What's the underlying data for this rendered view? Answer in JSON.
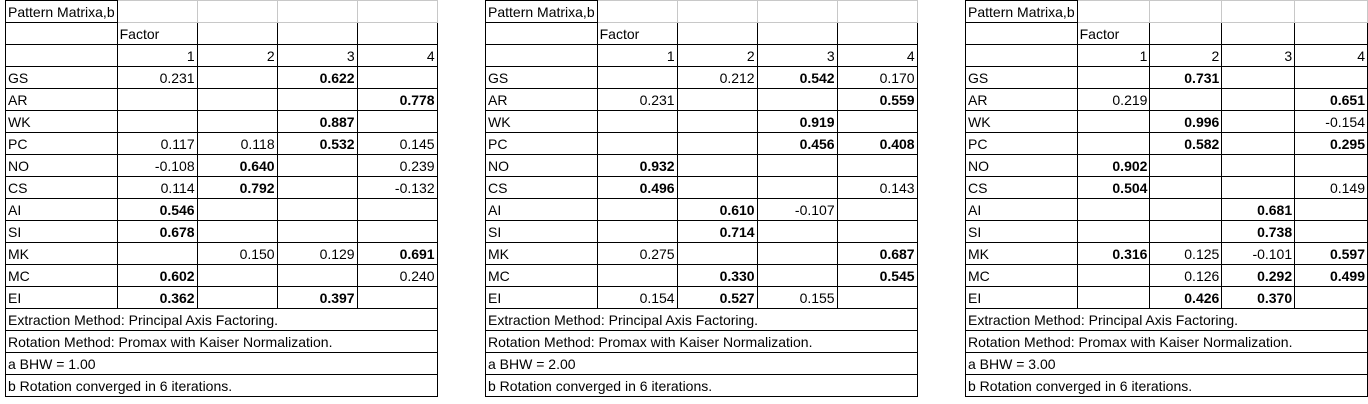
{
  "tables": [
    {
      "title": "Pattern Matrixa,b",
      "factor_label": "Factor",
      "columns": [
        "1",
        "2",
        "3",
        "4"
      ],
      "rows": [
        {
          "label": "GS",
          "values": [
            "0.231",
            "",
            "0.622",
            ""
          ],
          "bold": [
            false,
            false,
            true,
            false
          ]
        },
        {
          "label": "AR",
          "values": [
            "",
            "",
            "",
            "0.778"
          ],
          "bold": [
            false,
            false,
            false,
            true
          ]
        },
        {
          "label": "WK",
          "values": [
            "",
            "",
            "0.887",
            ""
          ],
          "bold": [
            false,
            false,
            true,
            false
          ]
        },
        {
          "label": "PC",
          "values": [
            "0.117",
            "0.118",
            "0.532",
            "0.145"
          ],
          "bold": [
            false,
            false,
            true,
            false
          ]
        },
        {
          "label": "NO",
          "values": [
            "-0.108",
            "0.640",
            "",
            "0.239"
          ],
          "bold": [
            false,
            true,
            false,
            false
          ]
        },
        {
          "label": "CS",
          "values": [
            "0.114",
            "0.792",
            "",
            "-0.132"
          ],
          "bold": [
            false,
            true,
            false,
            false
          ]
        },
        {
          "label": "AI",
          "values": [
            "0.546",
            "",
            "",
            ""
          ],
          "bold": [
            true,
            false,
            false,
            false
          ]
        },
        {
          "label": "SI",
          "values": [
            "0.678",
            "",
            "",
            ""
          ],
          "bold": [
            true,
            false,
            false,
            false
          ]
        },
        {
          "label": "MK",
          "values": [
            "",
            "0.150",
            "0.129",
            "0.691"
          ],
          "bold": [
            false,
            false,
            false,
            true
          ]
        },
        {
          "label": "MC",
          "values": [
            "0.602",
            "",
            "",
            "0.240"
          ],
          "bold": [
            true,
            false,
            false,
            false
          ]
        },
        {
          "label": "EI",
          "values": [
            "0.362",
            "",
            "0.397",
            ""
          ],
          "bold": [
            true,
            false,
            true,
            false
          ]
        }
      ],
      "notes": [
        "Extraction Method: Principal Axis Factoring.",
        " Rotation Method: Promax with Kaiser Normalization.",
        "a BHW = 1.00",
        "b Rotation converged in 6 iterations."
      ]
    },
    {
      "title": "Pattern Matrixa,b",
      "factor_label": "Factor",
      "columns": [
        "1",
        "2",
        "3",
        "4"
      ],
      "rows": [
        {
          "label": "GS",
          "values": [
            "",
            "0.212",
            "0.542",
            "0.170"
          ],
          "bold": [
            false,
            false,
            true,
            false
          ]
        },
        {
          "label": "AR",
          "values": [
            "0.231",
            "",
            "",
            "0.559"
          ],
          "bold": [
            false,
            false,
            false,
            true
          ]
        },
        {
          "label": "WK",
          "values": [
            "",
            "",
            "0.919",
            ""
          ],
          "bold": [
            false,
            false,
            true,
            false
          ]
        },
        {
          "label": "PC",
          "values": [
            "",
            "",
            "0.456",
            "0.408"
          ],
          "bold": [
            false,
            false,
            true,
            true
          ]
        },
        {
          "label": "NO",
          "values": [
            "0.932",
            "",
            "",
            ""
          ],
          "bold": [
            true,
            false,
            false,
            false
          ]
        },
        {
          "label": "CS",
          "values": [
            "0.496",
            "",
            "",
            "0.143"
          ],
          "bold": [
            true,
            false,
            false,
            false
          ]
        },
        {
          "label": "AI",
          "values": [
            "",
            "0.610",
            "-0.107",
            ""
          ],
          "bold": [
            false,
            true,
            false,
            false
          ]
        },
        {
          "label": "SI",
          "values": [
            "",
            "0.714",
            "",
            ""
          ],
          "bold": [
            false,
            true,
            false,
            false
          ]
        },
        {
          "label": "MK",
          "values": [
            "0.275",
            "",
            "",
            "0.687"
          ],
          "bold": [
            false,
            false,
            false,
            true
          ]
        },
        {
          "label": "MC",
          "values": [
            "",
            "0.330",
            "",
            "0.545"
          ],
          "bold": [
            false,
            true,
            false,
            true
          ]
        },
        {
          "label": "EI",
          "values": [
            "0.154",
            "0.527",
            "0.155",
            ""
          ],
          "bold": [
            false,
            true,
            false,
            false
          ]
        }
      ],
      "notes": [
        "Extraction Method: Principal Axis Factoring.",
        " Rotation Method: Promax with Kaiser Normalization.",
        "a BHW = 2.00",
        "b Rotation converged in 6 iterations."
      ]
    },
    {
      "title": "Pattern Matrixa,b",
      "factor_label": "Factor",
      "columns": [
        "1",
        "2",
        "3",
        "4"
      ],
      "rows": [
        {
          "label": "GS",
          "values": [
            "",
            "0.731",
            "",
            ""
          ],
          "bold": [
            false,
            true,
            false,
            false
          ]
        },
        {
          "label": "AR",
          "values": [
            "0.219",
            "",
            "",
            "0.651"
          ],
          "bold": [
            false,
            false,
            false,
            true
          ]
        },
        {
          "label": "WK",
          "values": [
            "",
            "0.996",
            "",
            "-0.154"
          ],
          "bold": [
            false,
            true,
            false,
            false
          ]
        },
        {
          "label": "PC",
          "values": [
            "",
            "0.582",
            "",
            "0.295"
          ],
          "bold": [
            false,
            true,
            false,
            true
          ]
        },
        {
          "label": "NO",
          "values": [
            "0.902",
            "",
            "",
            ""
          ],
          "bold": [
            true,
            false,
            false,
            false
          ]
        },
        {
          "label": "CS",
          "values": [
            "0.504",
            "",
            "",
            "0.149"
          ],
          "bold": [
            true,
            false,
            false,
            false
          ]
        },
        {
          "label": "AI",
          "values": [
            "",
            "",
            "0.681",
            ""
          ],
          "bold": [
            false,
            false,
            true,
            false
          ]
        },
        {
          "label": "SI",
          "values": [
            "",
            "",
            "0.738",
            ""
          ],
          "bold": [
            false,
            false,
            true,
            false
          ]
        },
        {
          "label": "MK",
          "values": [
            "0.316",
            "0.125",
            "-0.101",
            "0.597"
          ],
          "bold": [
            true,
            false,
            false,
            true
          ]
        },
        {
          "label": "MC",
          "values": [
            "",
            "0.126",
            "0.292",
            "0.499"
          ],
          "bold": [
            false,
            false,
            true,
            true
          ]
        },
        {
          "label": "EI",
          "values": [
            "",
            "0.426",
            "0.370",
            ""
          ],
          "bold": [
            false,
            true,
            true,
            false
          ]
        }
      ],
      "notes": [
        "Extraction Method: Principal Axis Factoring.",
        " Rotation Method: Promax with Kaiser Normalization.",
        "a BHW = 3.00",
        "b Rotation converged in 6 iterations."
      ]
    }
  ]
}
